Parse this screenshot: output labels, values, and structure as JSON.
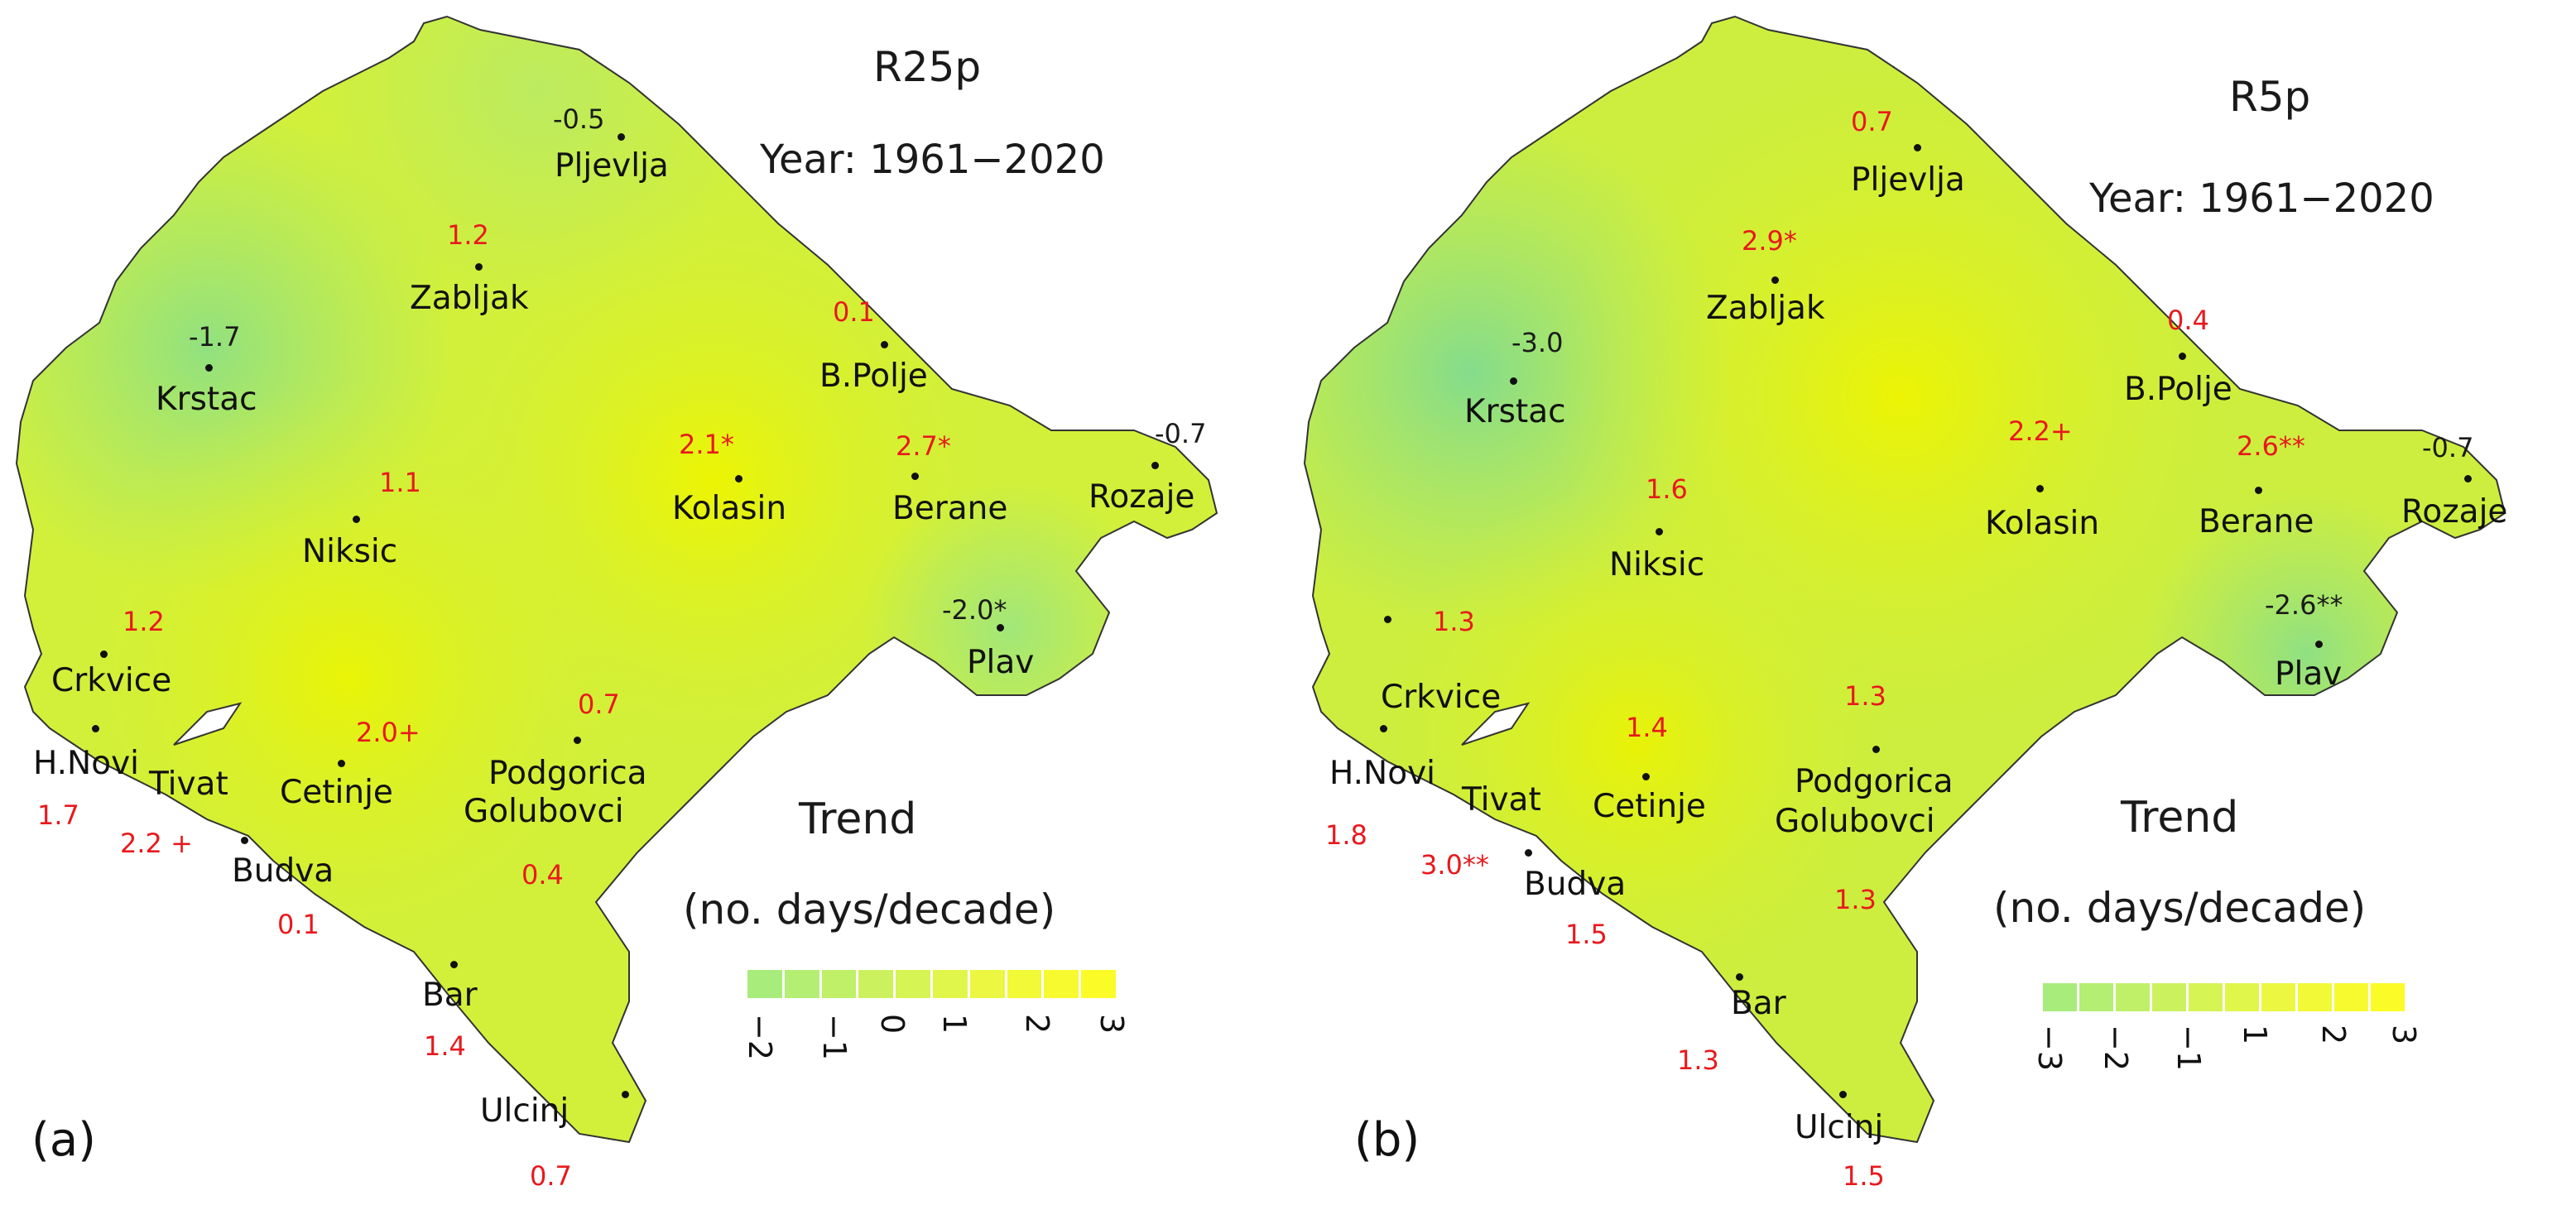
{
  "panels": [
    {
      "label": "(a)",
      "title": "R25p",
      "subtitle": "Year: 1961−2020",
      "legend_title": "Trend",
      "legend_subtitle": "(no. days/decade)",
      "legend_ticks": [
        "−2",
        "−1",
        "0",
        "1",
        "2",
        "3"
      ],
      "legend_colors": [
        "#a8ec7c",
        "#b4ee72",
        "#bff068",
        "#cbf25e",
        "#d6f454",
        "#e1f64a",
        "#ebf740",
        "#f2f937",
        "#f7fa2f",
        "#fbfb28"
      ],
      "stations": [
        {
          "name": "Pljevlja",
          "value": "-0.5",
          "sign": "neg"
        },
        {
          "name": "Zabljak",
          "value": "1.2",
          "sign": "pos"
        },
        {
          "name": "B.Polje",
          "value": "0.1",
          "sign": "pos"
        },
        {
          "name": "Krstac",
          "value": "-1.7",
          "sign": "neg"
        },
        {
          "name": "Kolasin",
          "value": "2.1*",
          "sign": "pos"
        },
        {
          "name": "Berane",
          "value": "2.7*",
          "sign": "pos"
        },
        {
          "name": "Rozaje",
          "value": "-0.7",
          "sign": "neg"
        },
        {
          "name": "Niksic",
          "value": "1.1",
          "sign": "pos"
        },
        {
          "name": "Plav",
          "value": "-2.0*",
          "sign": "neg"
        },
        {
          "name": "Crkvice",
          "value": "1.2",
          "sign": "pos"
        },
        {
          "name": "Cetinje",
          "value": "2.0+",
          "sign": "pos"
        },
        {
          "name": "Podgorica",
          "value": "0.7",
          "sign": "pos"
        },
        {
          "name": "Golubovci",
          "value": "0.4",
          "sign": "pos"
        },
        {
          "name": "H.Novi",
          "value": "1.7",
          "sign": "pos"
        },
        {
          "name": "Tivat",
          "value": "2.2 +",
          "sign": "pos"
        },
        {
          "name": "Budva",
          "value": "0.1",
          "sign": "pos"
        },
        {
          "name": "Bar",
          "value": "1.4",
          "sign": "pos"
        },
        {
          "name": "Ulcinj",
          "value": "0.7",
          "sign": "pos"
        }
      ]
    },
    {
      "label": "(b)",
      "title": "R5p",
      "subtitle": "Year: 1961−2020",
      "legend_title": "Trend",
      "legend_subtitle": "(no. days/decade)",
      "legend_ticks": [
        "−3",
        "−2",
        "−1",
        "1",
        "2",
        "3"
      ],
      "legend_colors": [
        "#a8ec7c",
        "#b4ee72",
        "#bff068",
        "#cbf25e",
        "#d6f454",
        "#e1f64a",
        "#ebf740",
        "#f2f937",
        "#f7fa2f",
        "#fbfb28"
      ],
      "stations": [
        {
          "name": "Pljevlja",
          "value": "0.7",
          "sign": "pos"
        },
        {
          "name": "Zabljak",
          "value": "2.9*",
          "sign": "pos"
        },
        {
          "name": "B.Polje",
          "value": "0.4",
          "sign": "pos"
        },
        {
          "name": "Krstac",
          "value": "-3.0",
          "sign": "neg"
        },
        {
          "name": "Kolasin",
          "value": "2.2+",
          "sign": "pos"
        },
        {
          "name": "Berane",
          "value": "2.6**",
          "sign": "pos"
        },
        {
          "name": "Rozaje",
          "value": "-0.7",
          "sign": "neg"
        },
        {
          "name": "Niksic",
          "value": "1.6",
          "sign": "pos"
        },
        {
          "name": "Plav",
          "value": "-2.6**",
          "sign": "neg"
        },
        {
          "name": "Crkvice",
          "value": "1.3",
          "sign": "pos"
        },
        {
          "name": "Cetinje",
          "value": "1.4",
          "sign": "pos"
        },
        {
          "name": "Podgorica",
          "value": "1.3",
          "sign": "pos"
        },
        {
          "name": "Golubovci",
          "value": "1.3",
          "sign": "pos"
        },
        {
          "name": "H.Novi",
          "value": "1.8",
          "sign": "pos"
        },
        {
          "name": "Tivat",
          "value": "3.0**",
          "sign": "pos"
        },
        {
          "name": "Budva",
          "value": "1.5",
          "sign": "pos"
        },
        {
          "name": "Bar",
          "value": "1.3",
          "sign": "pos"
        },
        {
          "name": "Ulcinj",
          "value": "1.5",
          "sign": "pos"
        }
      ]
    }
  ]
}
